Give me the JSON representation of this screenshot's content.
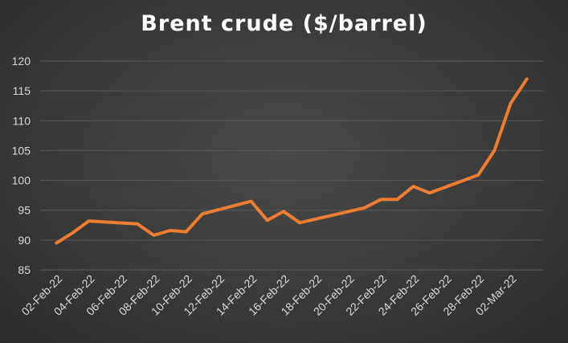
{
  "chart_data": {
    "type": "line",
    "title": "Brent crude ($/barrel)",
    "xlabel": "",
    "ylabel": "",
    "ylim": [
      85,
      120
    ],
    "yticks": [
      85,
      90,
      95,
      100,
      105,
      110,
      115,
      120
    ],
    "grid": true,
    "legend": "none",
    "line_color": "#ed7d31",
    "x_tick_labels": [
      "02-Feb-22",
      "04-Feb-22",
      "06-Feb-22",
      "08-Feb-22",
      "10-Feb-22",
      "12-Feb-22",
      "14-Feb-22",
      "16-Feb-22",
      "18-Feb-22",
      "20-Feb-22",
      "22-Feb-22",
      "24-Feb-22",
      "26-Feb-22",
      "28-Feb-22",
      "02-Mar-22"
    ],
    "series": [
      {
        "points": [
          {
            "x": "2022-02-02",
            "y": 89.5
          },
          {
            "x": "2022-02-03",
            "y": 91.2
          },
          {
            "x": "2022-02-04",
            "y": 93.2
          },
          {
            "x": "2022-02-07",
            "y": 92.7
          },
          {
            "x": "2022-02-08",
            "y": 90.8
          },
          {
            "x": "2022-02-09",
            "y": 91.6
          },
          {
            "x": "2022-02-10",
            "y": 91.4
          },
          {
            "x": "2022-02-11",
            "y": 94.4
          },
          {
            "x": "2022-02-14",
            "y": 96.5
          },
          {
            "x": "2022-02-15",
            "y": 93.3
          },
          {
            "x": "2022-02-16",
            "y": 94.8
          },
          {
            "x": "2022-02-17",
            "y": 92.9
          },
          {
            "x": "2022-02-21",
            "y": 95.4
          },
          {
            "x": "2022-02-22",
            "y": 96.8
          },
          {
            "x": "2022-02-23",
            "y": 96.8
          },
          {
            "x": "2022-02-24",
            "y": 99.0
          },
          {
            "x": "2022-02-25",
            "y": 97.9
          },
          {
            "x": "2022-02-28",
            "y": 100.9
          },
          {
            "x": "2022-03-01",
            "y": 105.0
          },
          {
            "x": "2022-03-02",
            "y": 112.9
          },
          {
            "x": "2022-03-03",
            "y": 117.0
          }
        ]
      }
    ]
  }
}
